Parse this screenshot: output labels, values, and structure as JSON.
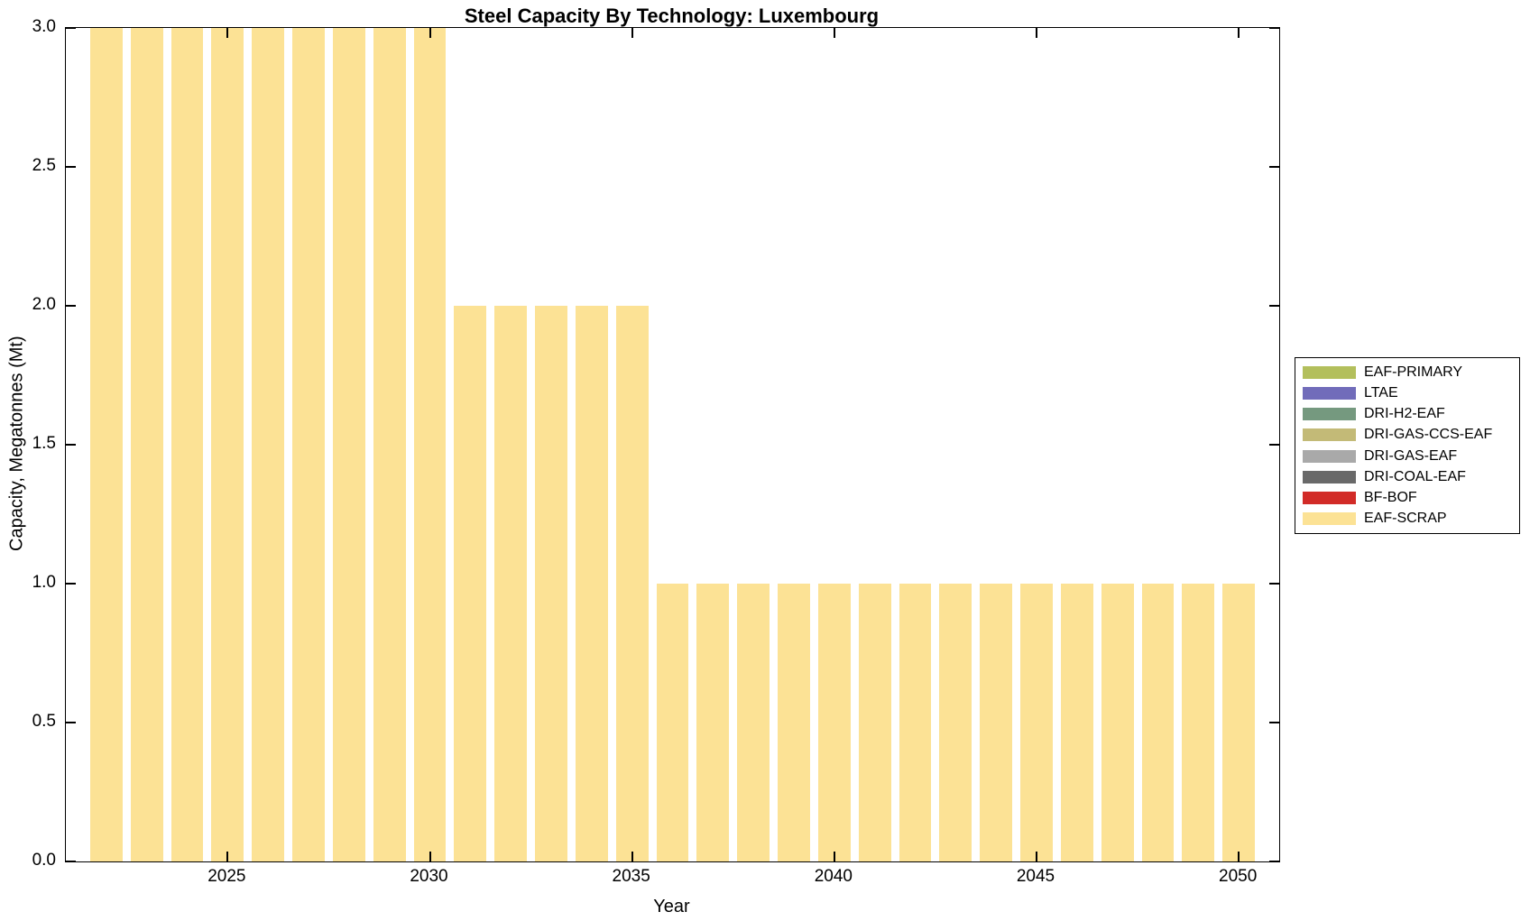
{
  "title": "Steel Capacity By Technology: Luxembourg",
  "colors": {
    "axis": "#000000",
    "background": "#FFFFFF",
    "bar_fill": "#FCE295"
  },
  "chart_data": {
    "type": "bar",
    "title": "Steel Capacity By Technology: Luxembourg",
    "xlabel": "Year",
    "ylabel": "Capacity, Megatonnes (Mt)",
    "xlim": [
      2021,
      2051
    ],
    "ylim": [
      0,
      3
    ],
    "x_ticks": [
      2025,
      2030,
      2035,
      2040,
      2045,
      2050
    ],
    "x_tick_labels": [
      "2025",
      "2030",
      "2035",
      "2040",
      "2045",
      "2050"
    ],
    "y_ticks": [
      0.0,
      0.5,
      1.0,
      1.5,
      2.0,
      2.5,
      3.0
    ],
    "y_tick_labels": [
      "0.0",
      "0.5",
      "1.0",
      "1.5",
      "2.0",
      "2.5",
      "3.0"
    ],
    "grid": false,
    "bar_width_fraction": 0.8,
    "legend_position": "right-outside",
    "x": [
      2022,
      2023,
      2024,
      2025,
      2026,
      2027,
      2028,
      2029,
      2030,
      2031,
      2032,
      2033,
      2034,
      2035,
      2036,
      2037,
      2038,
      2039,
      2040,
      2041,
      2042,
      2043,
      2044,
      2045,
      2046,
      2047,
      2048,
      2049,
      2050
    ],
    "series": [
      {
        "name": "EAF-SCRAP",
        "color": "#FCE295",
        "values": [
          3,
          3,
          3,
          3,
          3,
          3,
          3,
          3,
          3,
          2,
          2,
          2,
          2,
          2,
          1,
          1,
          1,
          1,
          1,
          1,
          1,
          1,
          1,
          1,
          1,
          1,
          1,
          1,
          1
        ]
      }
    ],
    "legend": [
      {
        "label": "EAF-PRIMARY",
        "color": "#B3BF5C"
      },
      {
        "label": "LTAE",
        "color": "#716CBA"
      },
      {
        "label": "DRI-H2-EAF",
        "color": "#75997F"
      },
      {
        "label": "DRI-GAS-CCS-EAF",
        "color": "#C3BA77"
      },
      {
        "label": "DRI-GAS-EAF",
        "color": "#A9A9A9"
      },
      {
        "label": "DRI-COAL-EAF",
        "color": "#696969"
      },
      {
        "label": "BF-BOF",
        "color": "#D22B27"
      },
      {
        "label": "EAF-SCRAP",
        "color": "#FCE295"
      }
    ]
  }
}
